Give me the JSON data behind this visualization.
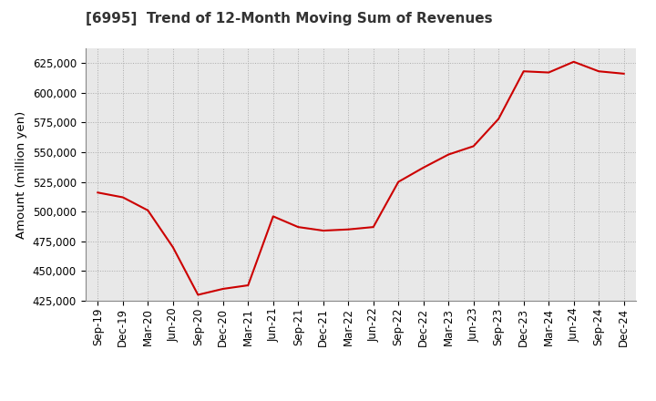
{
  "title": "[6995]  Trend of 12-Month Moving Sum of Revenues",
  "ylabel": "Amount (million yen)",
  "line_color": "#cc0000",
  "figure_facecolor": "#ffffff",
  "plot_facecolor": "#e8e8e8",
  "grid_color": "#aaaaaa",
  "ylim": [
    425000,
    637500
  ],
  "yticks": [
    425000,
    450000,
    475000,
    500000,
    525000,
    550000,
    575000,
    600000,
    625000
  ],
  "x_labels": [
    "Sep-19",
    "Dec-19",
    "Mar-20",
    "Jun-20",
    "Sep-20",
    "Dec-20",
    "Mar-21",
    "Jun-21",
    "Sep-21",
    "Dec-21",
    "Mar-22",
    "Jun-22",
    "Sep-22",
    "Dec-22",
    "Mar-23",
    "Jun-23",
    "Sep-23",
    "Dec-23",
    "Mar-24",
    "Jun-24",
    "Sep-24",
    "Dec-24"
  ],
  "values": [
    516000,
    512000,
    501000,
    470000,
    430000,
    435000,
    438000,
    496000,
    487000,
    484000,
    485000,
    487000,
    525000,
    537000,
    548000,
    555000,
    578000,
    618000,
    617000,
    626000,
    618000,
    616000
  ]
}
